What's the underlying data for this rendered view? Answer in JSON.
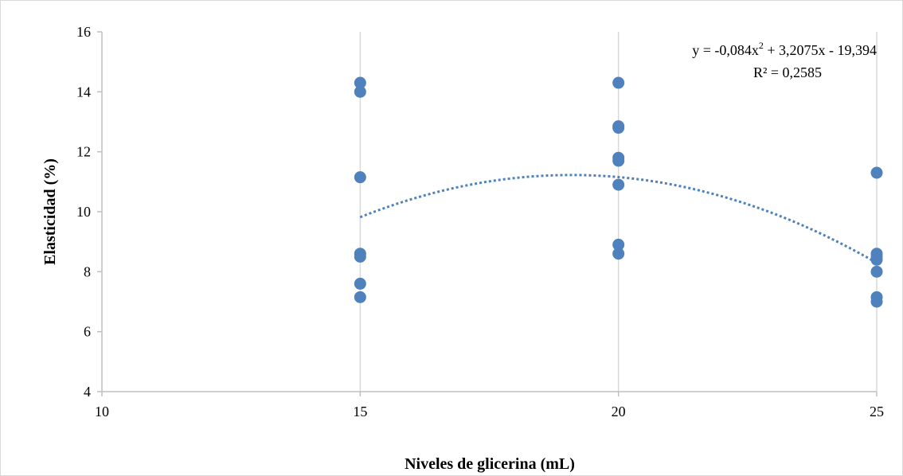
{
  "chart_data": {
    "type": "scatter",
    "title": "",
    "xlabel": "Niveles de glicerina (mL)",
    "ylabel": "Elasticidad (%)",
    "xlim": [
      10,
      25
    ],
    "ylim": [
      4,
      16
    ],
    "x_ticks": [
      10,
      15,
      20,
      25
    ],
    "y_ticks": [
      4,
      6,
      8,
      10,
      12,
      14,
      16
    ],
    "x_tick_labels": [
      "10",
      "15",
      "20",
      "25"
    ],
    "y_tick_labels": [
      "4",
      "6",
      "8",
      "10",
      "12",
      "14",
      "16"
    ],
    "grid": "vertical",
    "point_color": "#4f81bd",
    "trend_color": "#4f81bd",
    "points": [
      {
        "x": 15,
        "y": 14.3
      },
      {
        "x": 15,
        "y": 14.0
      },
      {
        "x": 15,
        "y": 11.15
      },
      {
        "x": 15,
        "y": 8.6
      },
      {
        "x": 15,
        "y": 8.5
      },
      {
        "x": 15,
        "y": 7.6
      },
      {
        "x": 15,
        "y": 7.15
      },
      {
        "x": 20,
        "y": 14.3
      },
      {
        "x": 20,
        "y": 12.85
      },
      {
        "x": 20,
        "y": 12.8
      },
      {
        "x": 20,
        "y": 11.8
      },
      {
        "x": 20,
        "y": 11.7
      },
      {
        "x": 20,
        "y": 10.9
      },
      {
        "x": 20,
        "y": 8.9
      },
      {
        "x": 20,
        "y": 8.6
      },
      {
        "x": 25,
        "y": 11.3
      },
      {
        "x": 25,
        "y": 8.6
      },
      {
        "x": 25,
        "y": 8.5
      },
      {
        "x": 25,
        "y": 8.4
      },
      {
        "x": 25,
        "y": 8.0
      },
      {
        "x": 25,
        "y": 7.15
      },
      {
        "x": 25,
        "y": 7.0
      }
    ],
    "trendline": {
      "type": "polynomial",
      "order": 2,
      "coefficients": [
        -0.084,
        3.2075,
        -19.394
      ],
      "x_range": [
        15,
        25
      ],
      "equation_prefix": "y = -0,084x",
      "equation_exponent": "2",
      "equation_suffix": " + 3,2075x - 19,394",
      "r_squared_label": "R² = 0,2585"
    }
  }
}
